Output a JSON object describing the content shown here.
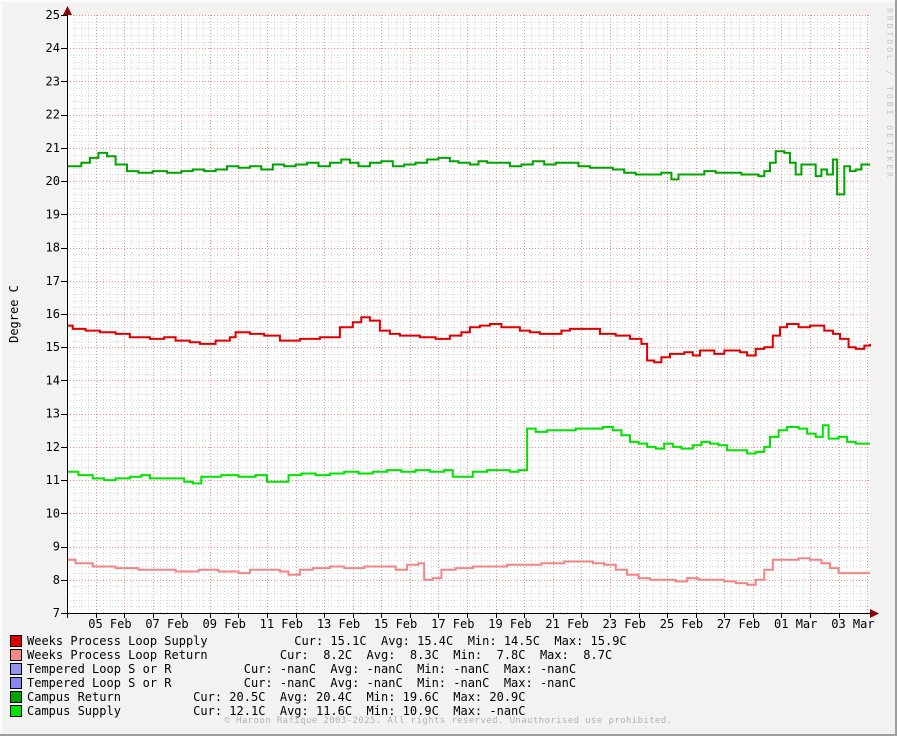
{
  "watermark": "RRDTOOL / TOBI OETIKER",
  "footer": "© Haroon Rafique 2003-2025. All rights reserved. Unauthorised use prohibited.",
  "chart_data": {
    "type": "line",
    "title": "",
    "ylabel": "Degree C",
    "xlabel": "",
    "ylim": [
      7,
      25
    ],
    "xlim_days": [
      0,
      28.1
    ],
    "y_major_step": 1,
    "y_minor_step": 0.2,
    "x_major_step_days": 1,
    "x_minor_step_days": 0.25,
    "grid": {
      "minor_color": "#d7d7d7",
      "major_color": "#f98a8a",
      "canvas": "#ffffff",
      "axis_color": "#000000",
      "arrow_color": "#8f0000"
    },
    "yticks": [
      7,
      8,
      9,
      10,
      11,
      12,
      13,
      14,
      15,
      16,
      17,
      18,
      19,
      20,
      21,
      22,
      23,
      24,
      25
    ],
    "xticks": [
      {
        "pos": 1.5,
        "label": "05 Feb"
      },
      {
        "pos": 3.5,
        "label": "07 Feb"
      },
      {
        "pos": 5.5,
        "label": "09 Feb"
      },
      {
        "pos": 7.5,
        "label": "11 Feb"
      },
      {
        "pos": 9.5,
        "label": "13 Feb"
      },
      {
        "pos": 11.5,
        "label": "15 Feb"
      },
      {
        "pos": 13.5,
        "label": "17 Feb"
      },
      {
        "pos": 15.5,
        "label": "19 Feb"
      },
      {
        "pos": 17.5,
        "label": "21 Feb"
      },
      {
        "pos": 19.5,
        "label": "23 Feb"
      },
      {
        "pos": 21.5,
        "label": "25 Feb"
      },
      {
        "pos": 23.5,
        "label": "27 Feb"
      },
      {
        "pos": 25.5,
        "label": "01 Mar"
      },
      {
        "pos": 27.5,
        "label": "03 Mar"
      }
    ],
    "series": [
      {
        "name": "Weeks Process Loop Supply",
        "color": "#e10000",
        "stats": {
          "cur": "15.1C",
          "avg": "15.4C",
          "min": "14.5C",
          "max": "15.9C"
        },
        "points": [
          [
            0,
            15.65
          ],
          [
            0.2,
            15.55
          ],
          [
            0.65,
            15.5
          ],
          [
            1.15,
            15.45
          ],
          [
            1.7,
            15.4
          ],
          [
            2.2,
            15.3
          ],
          [
            2.9,
            15.25
          ],
          [
            3.4,
            15.3
          ],
          [
            3.8,
            15.2
          ],
          [
            4.3,
            15.15
          ],
          [
            4.65,
            15.1
          ],
          [
            5.2,
            15.2
          ],
          [
            5.7,
            15.3
          ],
          [
            5.9,
            15.45
          ],
          [
            6.4,
            15.4
          ],
          [
            6.9,
            15.35
          ],
          [
            7.45,
            15.2
          ],
          [
            8.15,
            15.25
          ],
          [
            8.85,
            15.3
          ],
          [
            9.55,
            15.6
          ],
          [
            10.0,
            15.75
          ],
          [
            10.3,
            15.9
          ],
          [
            10.6,
            15.8
          ],
          [
            10.95,
            15.5
          ],
          [
            11.3,
            15.4
          ],
          [
            11.65,
            15.35
          ],
          [
            12.35,
            15.3
          ],
          [
            12.9,
            15.25
          ],
          [
            13.4,
            15.35
          ],
          [
            13.8,
            15.45
          ],
          [
            14.1,
            15.6
          ],
          [
            14.45,
            15.65
          ],
          [
            14.8,
            15.7
          ],
          [
            15.2,
            15.6
          ],
          [
            15.85,
            15.5
          ],
          [
            16.2,
            15.45
          ],
          [
            16.55,
            15.4
          ],
          [
            17.0,
            15.4
          ],
          [
            17.3,
            15.5
          ],
          [
            17.6,
            15.55
          ],
          [
            18.1,
            15.55
          ],
          [
            18.65,
            15.4
          ],
          [
            19.2,
            15.35
          ],
          [
            19.7,
            15.25
          ],
          [
            20.1,
            15.1
          ],
          [
            20.3,
            14.6
          ],
          [
            20.55,
            14.55
          ],
          [
            20.8,
            14.7
          ],
          [
            21.1,
            14.8
          ],
          [
            21.6,
            14.85
          ],
          [
            21.9,
            14.75
          ],
          [
            22.15,
            14.9
          ],
          [
            22.65,
            14.8
          ],
          [
            23.0,
            14.9
          ],
          [
            23.55,
            14.85
          ],
          [
            23.8,
            14.75
          ],
          [
            24.1,
            14.95
          ],
          [
            24.4,
            15.0
          ],
          [
            24.7,
            15.35
          ],
          [
            24.95,
            15.6
          ],
          [
            25.2,
            15.7
          ],
          [
            25.6,
            15.6
          ],
          [
            26.0,
            15.65
          ],
          [
            26.5,
            15.5
          ],
          [
            26.8,
            15.4
          ],
          [
            27.05,
            15.25
          ],
          [
            27.35,
            15.0
          ],
          [
            27.6,
            14.95
          ],
          [
            27.9,
            15.05
          ],
          [
            28.1,
            15.1
          ]
        ]
      },
      {
        "name": "Weeks Process Loop Return",
        "color": "#f18585",
        "stats": {
          "cur": "8.2C",
          "avg": "8.3C",
          "min": "7.8C",
          "max": "8.7C"
        },
        "points": [
          [
            0,
            8.6
          ],
          [
            0.3,
            8.5
          ],
          [
            0.9,
            8.4
          ],
          [
            1.7,
            8.35
          ],
          [
            2.5,
            8.3
          ],
          [
            3.8,
            8.25
          ],
          [
            4.6,
            8.3
          ],
          [
            5.3,
            8.25
          ],
          [
            6.0,
            8.2
          ],
          [
            6.4,
            8.3
          ],
          [
            7.0,
            8.3
          ],
          [
            7.45,
            8.25
          ],
          [
            7.75,
            8.15
          ],
          [
            8.15,
            8.3
          ],
          [
            8.6,
            8.35
          ],
          [
            9.2,
            8.4
          ],
          [
            9.7,
            8.35
          ],
          [
            10.4,
            8.4
          ],
          [
            11.1,
            8.4
          ],
          [
            11.5,
            8.3
          ],
          [
            11.9,
            8.45
          ],
          [
            12.3,
            8.5
          ],
          [
            12.5,
            8.0
          ],
          [
            12.8,
            8.05
          ],
          [
            13.1,
            8.3
          ],
          [
            13.6,
            8.35
          ],
          [
            14.2,
            8.4
          ],
          [
            14.8,
            8.4
          ],
          [
            15.4,
            8.45
          ],
          [
            16.0,
            8.45
          ],
          [
            16.6,
            8.5
          ],
          [
            17.4,
            8.55
          ],
          [
            18.0,
            8.55
          ],
          [
            18.4,
            8.5
          ],
          [
            18.8,
            8.45
          ],
          [
            19.2,
            8.3
          ],
          [
            19.6,
            8.15
          ],
          [
            20.0,
            8.05
          ],
          [
            20.4,
            8.0
          ],
          [
            21.3,
            7.95
          ],
          [
            21.7,
            8.05
          ],
          [
            22.1,
            8.0
          ],
          [
            23.0,
            7.95
          ],
          [
            23.4,
            7.9
          ],
          [
            23.8,
            7.85
          ],
          [
            24.1,
            8.0
          ],
          [
            24.4,
            8.3
          ],
          [
            24.7,
            8.6
          ],
          [
            25.2,
            8.6
          ],
          [
            25.6,
            8.65
          ],
          [
            26.0,
            8.6
          ],
          [
            26.4,
            8.5
          ],
          [
            26.7,
            8.35
          ],
          [
            27.0,
            8.2
          ],
          [
            28.1,
            8.2
          ]
        ]
      },
      {
        "name": "Campus Return",
        "color": "#00a400",
        "stats": {
          "cur": "20.5C",
          "avg": "20.4C",
          "min": "19.6C",
          "max": "20.9C"
        },
        "points": [
          [
            0,
            20.45
          ],
          [
            0.5,
            20.55
          ],
          [
            0.8,
            20.7
          ],
          [
            1.1,
            20.85
          ],
          [
            1.4,
            20.75
          ],
          [
            1.7,
            20.5
          ],
          [
            2.1,
            20.3
          ],
          [
            2.5,
            20.25
          ],
          [
            3.0,
            20.3
          ],
          [
            3.5,
            20.25
          ],
          [
            4.0,
            20.3
          ],
          [
            4.4,
            20.35
          ],
          [
            4.8,
            20.3
          ],
          [
            5.2,
            20.35
          ],
          [
            5.6,
            20.45
          ],
          [
            6.0,
            20.4
          ],
          [
            6.4,
            20.45
          ],
          [
            6.8,
            20.35
          ],
          [
            7.2,
            20.5
          ],
          [
            7.6,
            20.45
          ],
          [
            8.0,
            20.5
          ],
          [
            8.4,
            20.55
          ],
          [
            8.8,
            20.45
          ],
          [
            9.2,
            20.55
          ],
          [
            9.6,
            20.65
          ],
          [
            9.9,
            20.55
          ],
          [
            10.2,
            20.45
          ],
          [
            10.6,
            20.55
          ],
          [
            11.0,
            20.6
          ],
          [
            11.4,
            20.45
          ],
          [
            11.8,
            20.5
          ],
          [
            12.2,
            20.55
          ],
          [
            12.6,
            20.65
          ],
          [
            13.0,
            20.7
          ],
          [
            13.4,
            20.6
          ],
          [
            13.7,
            20.55
          ],
          [
            14.1,
            20.5
          ],
          [
            14.4,
            20.6
          ],
          [
            14.7,
            20.55
          ],
          [
            15.1,
            20.55
          ],
          [
            15.5,
            20.45
          ],
          [
            15.9,
            20.5
          ],
          [
            16.3,
            20.6
          ],
          [
            16.7,
            20.5
          ],
          [
            17.1,
            20.55
          ],
          [
            17.9,
            20.45
          ],
          [
            18.3,
            20.4
          ],
          [
            19.1,
            20.35
          ],
          [
            19.5,
            20.25
          ],
          [
            19.9,
            20.2
          ],
          [
            20.8,
            20.25
          ],
          [
            21.15,
            20.05
          ],
          [
            21.4,
            20.2
          ],
          [
            22.3,
            20.3
          ],
          [
            22.7,
            20.25
          ],
          [
            23.6,
            20.2
          ],
          [
            24.2,
            20.15
          ],
          [
            24.4,
            20.3
          ],
          [
            24.6,
            20.55
          ],
          [
            24.8,
            20.9
          ],
          [
            25.1,
            20.85
          ],
          [
            25.3,
            20.55
          ],
          [
            25.5,
            20.2
          ],
          [
            25.7,
            20.5
          ],
          [
            26.0,
            20.5
          ],
          [
            26.2,
            20.15
          ],
          [
            26.4,
            20.35
          ],
          [
            26.6,
            20.2
          ],
          [
            26.8,
            20.65
          ],
          [
            26.95,
            19.6
          ],
          [
            27.2,
            20.45
          ],
          [
            27.4,
            20.3
          ],
          [
            27.6,
            20.35
          ],
          [
            27.8,
            20.5
          ],
          [
            28.1,
            20.5
          ]
        ]
      },
      {
        "name": "Campus Supply",
        "color": "#00e400",
        "stats": {
          "cur": "12.1C",
          "avg": "11.6C",
          "min": "10.9C",
          "max": "-nanC"
        },
        "points": [
          [
            0,
            11.25
          ],
          [
            0.4,
            11.15
          ],
          [
            0.9,
            11.05
          ],
          [
            1.3,
            11.0
          ],
          [
            1.7,
            11.05
          ],
          [
            2.2,
            11.1
          ],
          [
            2.6,
            11.15
          ],
          [
            2.9,
            11.05
          ],
          [
            3.6,
            11.05
          ],
          [
            4.1,
            10.95
          ],
          [
            4.4,
            10.9
          ],
          [
            4.7,
            11.1
          ],
          [
            5.4,
            11.15
          ],
          [
            6.0,
            11.1
          ],
          [
            6.6,
            11.15
          ],
          [
            7.0,
            10.95
          ],
          [
            7.45,
            10.95
          ],
          [
            7.75,
            11.15
          ],
          [
            8.2,
            11.2
          ],
          [
            8.7,
            11.15
          ],
          [
            9.2,
            11.2
          ],
          [
            9.7,
            11.25
          ],
          [
            10.2,
            11.2
          ],
          [
            10.7,
            11.25
          ],
          [
            11.2,
            11.3
          ],
          [
            11.7,
            11.25
          ],
          [
            12.2,
            11.3
          ],
          [
            12.7,
            11.25
          ],
          [
            13.2,
            11.3
          ],
          [
            13.5,
            11.1
          ],
          [
            13.9,
            11.1
          ],
          [
            14.2,
            11.25
          ],
          [
            14.7,
            11.3
          ],
          [
            15.2,
            11.3
          ],
          [
            15.5,
            11.25
          ],
          [
            15.8,
            11.3
          ],
          [
            16.1,
            12.55
          ],
          [
            16.4,
            12.45
          ],
          [
            16.8,
            12.5
          ],
          [
            17.3,
            12.5
          ],
          [
            17.8,
            12.55
          ],
          [
            18.3,
            12.55
          ],
          [
            18.75,
            12.6
          ],
          [
            19.1,
            12.5
          ],
          [
            19.4,
            12.35
          ],
          [
            19.7,
            12.15
          ],
          [
            20.0,
            12.1
          ],
          [
            20.3,
            12.0
          ],
          [
            20.6,
            11.95
          ],
          [
            20.9,
            12.1
          ],
          [
            21.2,
            12.0
          ],
          [
            21.5,
            11.95
          ],
          [
            21.9,
            12.05
          ],
          [
            22.2,
            12.15
          ],
          [
            22.5,
            12.1
          ],
          [
            22.8,
            12.05
          ],
          [
            23.1,
            11.9
          ],
          [
            23.8,
            11.8
          ],
          [
            24.1,
            11.85
          ],
          [
            24.4,
            12.0
          ],
          [
            24.6,
            12.3
          ],
          [
            24.9,
            12.5
          ],
          [
            25.2,
            12.6
          ],
          [
            25.6,
            12.55
          ],
          [
            25.9,
            12.4
          ],
          [
            26.2,
            12.3
          ],
          [
            26.45,
            12.65
          ],
          [
            26.65,
            12.25
          ],
          [
            27.0,
            12.3
          ],
          [
            27.3,
            12.15
          ],
          [
            27.6,
            12.1
          ],
          [
            28.1,
            12.1
          ]
        ]
      }
    ]
  },
  "legend": {
    "items": [
      {
        "swatch": "#e10000",
        "text": "Weeks Process Loop Supply            Cur: 15.1C  Avg: 15.4C  Min: 14.5C  Max: 15.9C"
      },
      {
        "swatch": "#f28989",
        "text": "Weeks Process Loop Return          Cur:  8.2C  Avg:  8.3C  Min:  7.8C  Max:  8.7C"
      },
      {
        "swatch": "#9595f1",
        "text": "Tempered Loop S or R          Cur: -nanC  Avg: -nanC  Min: -nanC  Max: -nanC"
      },
      {
        "swatch": "#8787ef",
        "text": "Tempered Loop S or R          Cur: -nanC  Avg: -nanC  Min: -nanC  Max: -nanC"
      },
      {
        "swatch": "#00a400",
        "text": "Campus Return          Cur: 20.5C  Avg: 20.4C  Min: 19.6C  Max: 20.9C"
      },
      {
        "swatch": "#00e400",
        "text": "Campus Supply          Cur: 12.1C  Avg: 11.6C  Min: 10.9C  Max: -nanC"
      }
    ]
  }
}
